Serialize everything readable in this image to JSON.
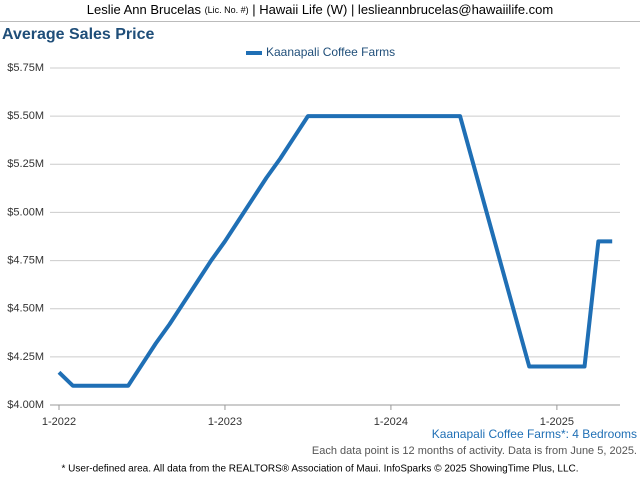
{
  "header": {
    "name": "Leslie Ann Brucelas",
    "license": "(Lic. No. #)",
    "rest": "| Hawaii Life (W) | leslieannbrucelas@hawaiilife.com"
  },
  "chart_data": {
    "type": "line",
    "title": "Average Sales Price",
    "categories": [
      "1-2022",
      null,
      null,
      null,
      null,
      null,
      null,
      null,
      null,
      null,
      null,
      null,
      "1-2023",
      null,
      null,
      null,
      null,
      null,
      null,
      null,
      null,
      null,
      null,
      null,
      "1-2024",
      null,
      null,
      null,
      null,
      null,
      null,
      null,
      null,
      null,
      null,
      null,
      "1-2025",
      null,
      null,
      null,
      null
    ],
    "series": [
      {
        "name": "Kaanapali Coffee Farms",
        "color": "#1f6fb5",
        "values": [
          4.17,
          4.1,
          4.1,
          4.1,
          4.1,
          4.1,
          4.21,
          4.32,
          4.42,
          4.53,
          4.64,
          4.75,
          4.85,
          4.96,
          5.07,
          5.18,
          5.28,
          5.39,
          5.5,
          5.5,
          5.5,
          5.5,
          5.5,
          5.5,
          5.5,
          5.5,
          5.5,
          5.5,
          5.5,
          5.5,
          5.24,
          4.98,
          4.72,
          4.46,
          4.2,
          4.2,
          4.2,
          4.2,
          4.2,
          4.85,
          4.85
        ]
      }
    ],
    "ylim": [
      4,
      5.75
    ],
    "yticks": [
      {
        "value": 4,
        "label": "$4.00M"
      },
      {
        "value": 4.25,
        "label": "$4.25M"
      },
      {
        "value": 4.5,
        "label": "$4.50M"
      },
      {
        "value": 4.75,
        "label": "$4.75M"
      },
      {
        "value": 5,
        "label": "$5.00M"
      },
      {
        "value": 5.25,
        "label": "$5.25M"
      },
      {
        "value": 5.5,
        "label": "$5.50M"
      },
      {
        "value": 5.75,
        "label": "$5.75M"
      }
    ],
    "grid": true,
    "legend": "top",
    "caption": "Kaanapali Coffee Farms*: 4 Bedrooms",
    "note": "Each data point is 12 months of activity. Data is from June 5, 2025.",
    "source": "* User-defined area. All data from the REALTORS® Association of Maui. InfoSparks © 2025 ShowingTime Plus, LLC."
  }
}
